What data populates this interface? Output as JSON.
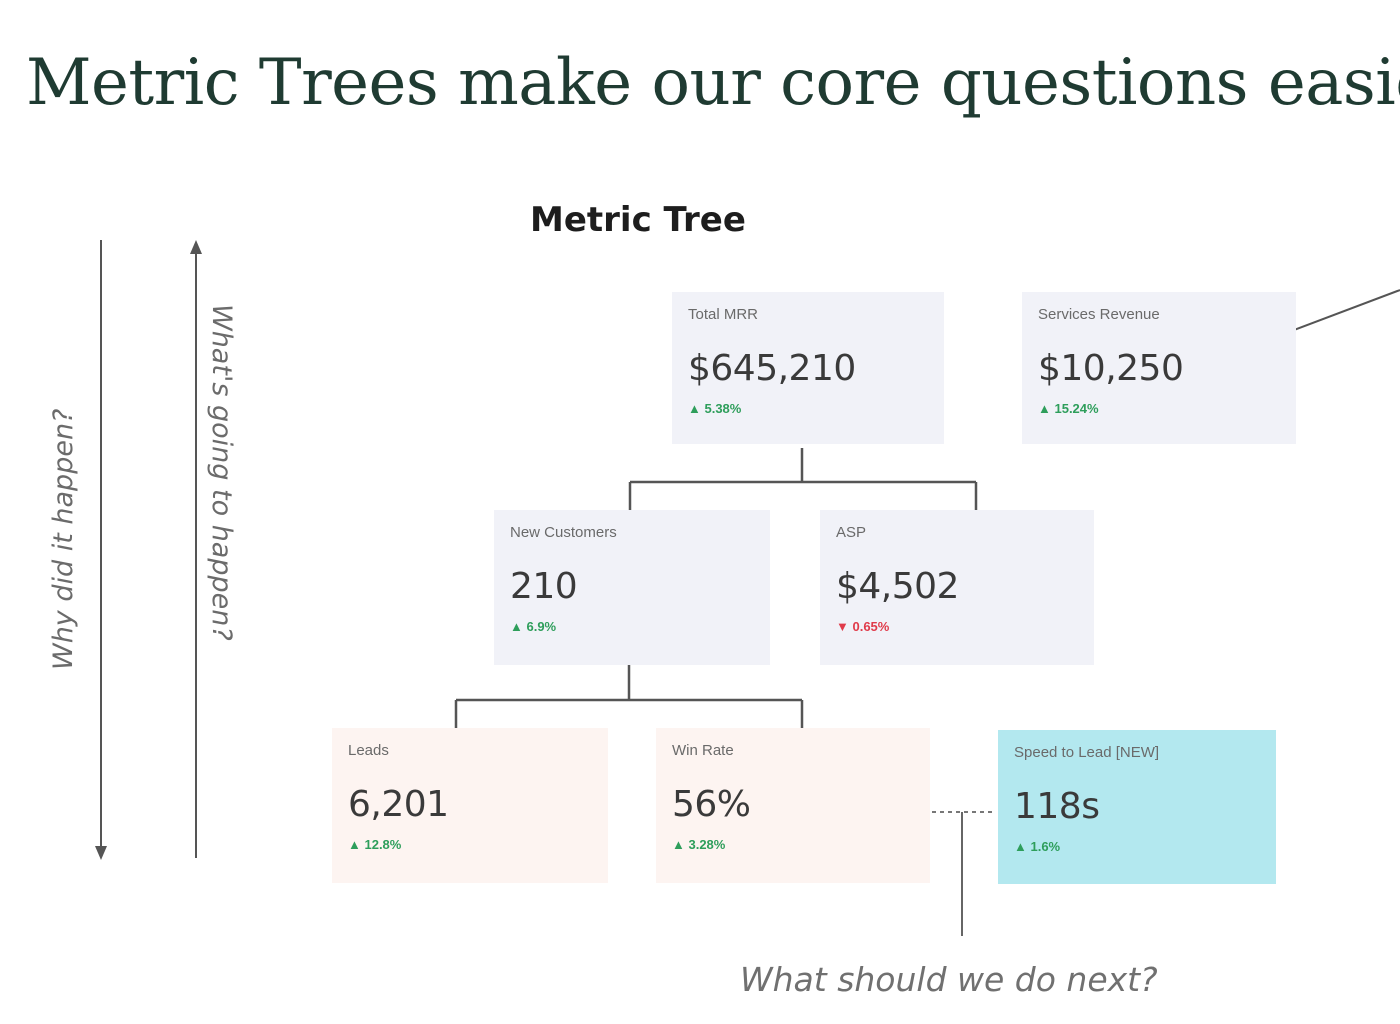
{
  "title": "Metric Trees make our core questions easier.",
  "tree_title": "Metric Tree",
  "left_axis": {
    "down_label": "Why did it happen?",
    "up_label": "What's going to happen?"
  },
  "footer_question": "What should we do next?",
  "cards": {
    "total_mrr": {
      "label": "Total MRR",
      "value": "$645,210",
      "change": "▲ 5.38%"
    },
    "services_revenue": {
      "label": "Services Revenue",
      "value": "$10,250",
      "change": "▲ 15.24%"
    },
    "new_customers": {
      "label": "New Customers",
      "value": "210",
      "change": "▲ 6.9%"
    },
    "asp": {
      "label": "ASP",
      "value": "$4,502",
      "change": "▼ 0.65%"
    },
    "leads": {
      "label": "Leads",
      "value": "6,201",
      "change": "▲ 12.8%"
    },
    "win_rate": {
      "label": "Win Rate",
      "value": "56%",
      "change": "▲ 3.28%"
    },
    "speed_to_lead": {
      "label": "Speed to Lead [NEW]",
      "value": "118s",
      "change": "▲ 1.6%"
    }
  },
  "colors": {
    "positive": "#2e9e5b",
    "negative": "#e03b4a",
    "highlight": "#b3e8ef"
  }
}
